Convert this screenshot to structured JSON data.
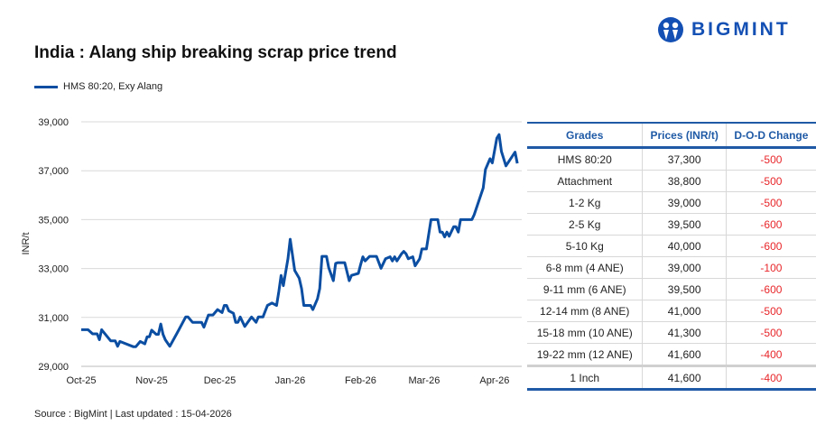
{
  "title": "India : Alang ship breaking scrap price trend",
  "brand": "BIGMINT",
  "source": "Source : BigMint | Last updated : 15-04-2026",
  "colors": {
    "line": "#0b4ea2",
    "header": "#1f5aa6",
    "negative": "#e8262a"
  },
  "chart_data": {
    "type": "line",
    "title": "India : Alang ship breaking scrap price trend",
    "ylabel": "INR/t",
    "xlabel": "",
    "ylim": [
      29000,
      39000
    ],
    "yticks": [
      "29,000",
      "31,000",
      "33,000",
      "35,000",
      "37,000",
      "39,000"
    ],
    "xticks": [
      "Oct-25",
      "Nov-25",
      "Dec-25",
      "Jan-26",
      "Feb-26",
      "Mar-26",
      "Apr-26"
    ],
    "grid": true,
    "legend": "top-left",
    "series": [
      {
        "name": "HMS 80:20, Exy Alang",
        "points": [
          [
            "2025-10-01",
            30500
          ],
          [
            "2025-10-04",
            30500
          ],
          [
            "2025-10-06",
            30330
          ],
          [
            "2025-10-08",
            30330
          ],
          [
            "2025-10-09",
            30090
          ],
          [
            "2025-10-10",
            30500
          ],
          [
            "2025-10-14",
            30040
          ],
          [
            "2025-10-16",
            30040
          ],
          [
            "2025-10-17",
            29820
          ],
          [
            "2025-10-18",
            30020
          ],
          [
            "2025-10-24",
            29800
          ],
          [
            "2025-10-25",
            29800
          ],
          [
            "2025-10-27",
            30020
          ],
          [
            "2025-10-29",
            29920
          ],
          [
            "2025-10-30",
            30210
          ],
          [
            "2025-10-31",
            30210
          ],
          [
            "2025-11-01",
            30480
          ],
          [
            "2025-11-03",
            30310
          ],
          [
            "2025-11-04",
            30310
          ],
          [
            "2025-11-05",
            30730
          ],
          [
            "2025-11-06",
            30310
          ],
          [
            "2025-11-07",
            30090
          ],
          [
            "2025-11-09",
            29820
          ],
          [
            "2025-11-12",
            30330
          ],
          [
            "2025-11-13",
            30500
          ],
          [
            "2025-11-16",
            31020
          ],
          [
            "2025-11-17",
            31020
          ],
          [
            "2025-11-19",
            30800
          ],
          [
            "2025-11-23",
            30800
          ],
          [
            "2025-11-24",
            30600
          ],
          [
            "2025-11-26",
            31100
          ],
          [
            "2025-11-28",
            31100
          ],
          [
            "2025-11-30",
            31320
          ],
          [
            "2025-12-02",
            31200
          ],
          [
            "2025-12-03",
            31490
          ],
          [
            "2025-12-04",
            31490
          ],
          [
            "2025-12-05",
            31270
          ],
          [
            "2025-12-07",
            31170
          ],
          [
            "2025-12-08",
            30800
          ],
          [
            "2025-12-09",
            30800
          ],
          [
            "2025-12-10",
            31020
          ],
          [
            "2025-12-12",
            30630
          ],
          [
            "2025-12-15",
            31020
          ],
          [
            "2025-12-17",
            30800
          ],
          [
            "2025-12-18",
            31020
          ],
          [
            "2025-12-20",
            31020
          ],
          [
            "2025-12-22",
            31490
          ],
          [
            "2025-12-24",
            31590
          ],
          [
            "2025-12-26",
            31490
          ],
          [
            "2025-12-27",
            32060
          ],
          [
            "2025-12-28",
            32720
          ],
          [
            "2025-12-29",
            32300
          ],
          [
            "2025-12-31",
            33400
          ],
          [
            "2026-01-01",
            34200
          ],
          [
            "2026-01-03",
            32920
          ],
          [
            "2026-01-05",
            32600
          ],
          [
            "2026-01-06",
            32180
          ],
          [
            "2026-01-07",
            31490
          ],
          [
            "2026-01-10",
            31490
          ],
          [
            "2026-01-11",
            31320
          ],
          [
            "2026-01-13",
            31760
          ],
          [
            "2026-01-14",
            32180
          ],
          [
            "2026-01-15",
            33500
          ],
          [
            "2026-01-17",
            33500
          ],
          [
            "2026-01-18",
            33030
          ],
          [
            "2026-01-20",
            32500
          ],
          [
            "2026-01-21",
            33210
          ],
          [
            "2026-01-22",
            33240
          ],
          [
            "2026-01-25",
            33240
          ],
          [
            "2026-01-27",
            32500
          ],
          [
            "2026-01-28",
            32720
          ],
          [
            "2026-01-31",
            32800
          ],
          [
            "2026-02-01",
            33160
          ],
          [
            "2026-02-02",
            33480
          ],
          [
            "2026-02-03",
            33310
          ],
          [
            "2026-02-05",
            33500
          ],
          [
            "2026-02-08",
            33500
          ],
          [
            "2026-02-10",
            33010
          ],
          [
            "2026-02-12",
            33400
          ],
          [
            "2026-02-14",
            33480
          ],
          [
            "2026-02-15",
            33310
          ],
          [
            "2026-02-16",
            33480
          ],
          [
            "2026-02-17",
            33310
          ],
          [
            "2026-02-19",
            33600
          ],
          [
            "2026-02-20",
            33700
          ],
          [
            "2026-02-21",
            33600
          ],
          [
            "2026-02-22",
            33400
          ],
          [
            "2026-02-24",
            33480
          ],
          [
            "2026-02-25",
            33110
          ],
          [
            "2026-02-27",
            33400
          ],
          [
            "2026-02-28",
            33800
          ],
          [
            "2026-03-02",
            33800
          ],
          [
            "2026-03-04",
            35000
          ],
          [
            "2026-03-07",
            35000
          ],
          [
            "2026-03-08",
            34490
          ],
          [
            "2026-03-09",
            34490
          ],
          [
            "2026-03-10",
            34290
          ],
          [
            "2026-03-11",
            34490
          ],
          [
            "2026-03-12",
            34320
          ],
          [
            "2026-03-14",
            34710
          ],
          [
            "2026-03-15",
            34710
          ],
          [
            "2026-03-16",
            34490
          ],
          [
            "2026-03-17",
            35000
          ],
          [
            "2026-03-22",
            35000
          ],
          [
            "2026-03-23",
            35200
          ],
          [
            "2026-03-27",
            36290
          ],
          [
            "2026-03-28",
            37050
          ],
          [
            "2026-03-30",
            37490
          ],
          [
            "2026-03-31",
            37320
          ],
          [
            "2026-04-02",
            38330
          ],
          [
            "2026-04-03",
            38480
          ],
          [
            "2026-04-04",
            37790
          ],
          [
            "2026-04-06",
            37200
          ],
          [
            "2026-04-10",
            37760
          ],
          [
            "2026-04-11",
            37300
          ]
        ]
      }
    ]
  },
  "table": {
    "headers": [
      "Grades",
      "Prices (INR/t)",
      "D-O-D Change"
    ],
    "rows": [
      [
        "HMS 80:20",
        "37,300",
        "-500"
      ],
      [
        "Attachment",
        "38,800",
        "-500"
      ],
      [
        "1-2 Kg",
        "39,000",
        "-500"
      ],
      [
        "2-5 Kg",
        "39,500",
        "-600"
      ],
      [
        "5-10 Kg",
        "40,000",
        "-600"
      ],
      [
        "6-8 mm (4 ANE)",
        "39,000",
        "-100"
      ],
      [
        "9-11 mm (6 ANE)",
        "39,500",
        "-600"
      ],
      [
        "12-14 mm (8 ANE)",
        "41,000",
        "-500"
      ],
      [
        "15-18 mm (10 ANE)",
        "41,300",
        "-500"
      ],
      [
        "19-22 mm (12 ANE)",
        "41,600",
        "-400"
      ],
      [
        "1 Inch",
        "41,600",
        "-400"
      ]
    ]
  }
}
